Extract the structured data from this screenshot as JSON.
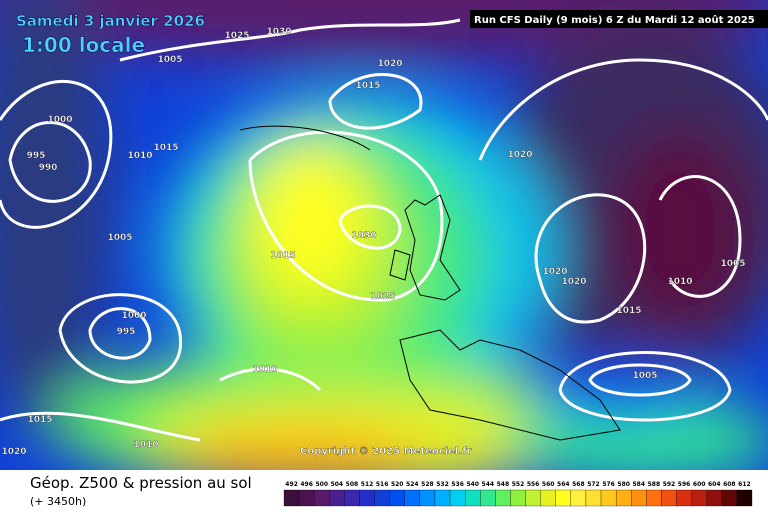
{
  "header": {
    "date": "Samedi 3 janvier 2026",
    "time": "1:00 locale",
    "run": "Run CFS Daily (9 mois) 6 Z du Mardi 12 août 2025"
  },
  "copyright": "Copyright © 2025 Meteociel.fr",
  "footer": {
    "title": "Géop. Z500 & pression au sol",
    "lead": "(+ 3450h)"
  },
  "isobar_labels": [
    1025,
    1030,
    1005,
    1020,
    1015,
    1000,
    995,
    990,
    1010,
    1015,
    1020,
    1030,
    1005,
    1015,
    1020,
    1020,
    1010,
    1005,
    1025,
    1015,
    1000,
    995,
    1010,
    1005,
    1015,
    1010,
    1020
  ],
  "scale": {
    "values": [
      492,
      496,
      500,
      504,
      508,
      512,
      516,
      520,
      524,
      528,
      532,
      536,
      540,
      544,
      548,
      552,
      556,
      560,
      564,
      568,
      572,
      576,
      580,
      584,
      588,
      592,
      596,
      600,
      604,
      608,
      612
    ],
    "colors": [
      "#3a0f3a",
      "#4a1250",
      "#5a1a6a",
      "#4a2090",
      "#3a28b0",
      "#2030c8",
      "#1040d8",
      "#0050f0",
      "#0070ff",
      "#0090ff",
      "#00b0ff",
      "#00d0f0",
      "#10e0c0",
      "#30e890",
      "#60f060",
      "#90f040",
      "#c0f030",
      "#e8f020",
      "#ffff20",
      "#fff040",
      "#ffe030",
      "#ffc820",
      "#ffb010",
      "#ff9010",
      "#ff7010",
      "#f05010",
      "#d83010",
      "#b82010",
      "#901010",
      "#600808",
      "#200000"
    ]
  }
}
